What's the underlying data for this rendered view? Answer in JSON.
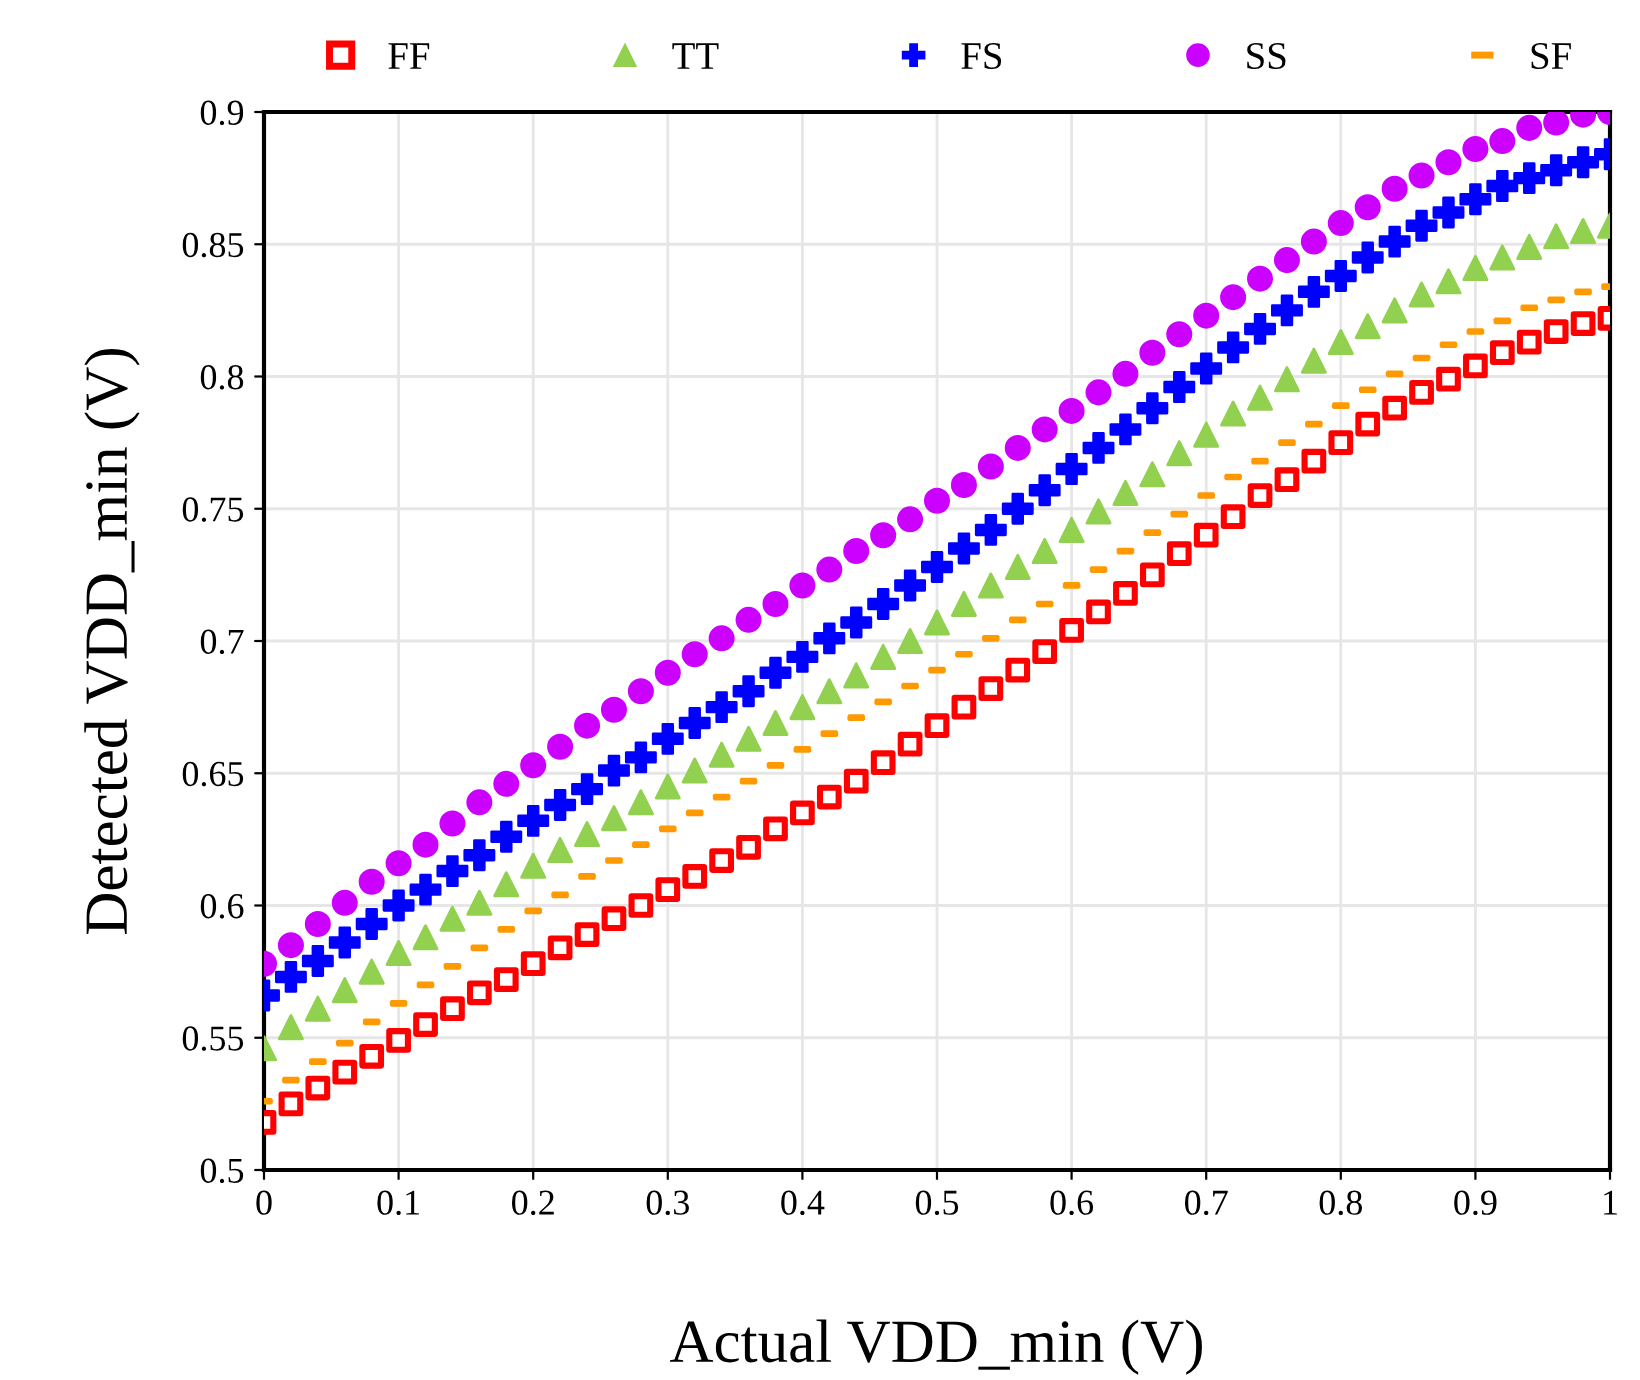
{
  "chart_data": {
    "type": "scatter",
    "xlabel": "Actual VDD_min (V)",
    "ylabel": "Detected VDD_min (V)",
    "x": [
      0,
      0.02,
      0.04,
      0.06,
      0.08,
      0.1,
      0.12,
      0.14,
      0.16,
      0.18,
      0.2,
      0.22,
      0.24,
      0.26,
      0.28,
      0.3,
      0.32,
      0.34,
      0.36,
      0.38,
      0.4,
      0.42,
      0.44,
      0.46,
      0.48,
      0.5,
      0.52,
      0.54,
      0.56,
      0.58,
      0.6,
      0.62,
      0.64,
      0.66,
      0.68,
      0.7,
      0.72,
      0.74,
      0.76,
      0.78,
      0.8,
      0.82,
      0.84,
      0.86,
      0.88,
      0.9,
      0.92,
      0.94,
      0.96,
      0.98,
      1
    ],
    "series": [
      {
        "name": "FF",
        "color": "#ff0000",
        "marker": "square",
        "values": [
          0.518,
          0.525,
          0.531,
          0.537,
          0.543,
          0.549,
          0.555,
          0.561,
          0.567,
          0.572,
          0.578,
          0.584,
          0.589,
          0.595,
          0.6,
          0.606,
          0.611,
          0.617,
          0.622,
          0.629,
          0.635,
          0.641,
          0.647,
          0.654,
          0.661,
          0.668,
          0.675,
          0.682,
          0.689,
          0.696,
          0.704,
          0.711,
          0.718,
          0.725,
          0.733,
          0.74,
          0.747,
          0.755,
          0.761,
          0.768,
          0.775,
          0.782,
          0.788,
          0.794,
          0.799,
          0.804,
          0.809,
          0.813,
          0.817,
          0.82,
          0.822
        ]
      },
      {
        "name": "TT",
        "color": "#92d050",
        "marker": "triangle",
        "values": [
          0.546,
          0.554,
          0.561,
          0.568,
          0.575,
          0.582,
          0.588,
          0.595,
          0.601,
          0.608,
          0.615,
          0.621,
          0.627,
          0.633,
          0.639,
          0.645,
          0.651,
          0.657,
          0.663,
          0.669,
          0.675,
          0.681,
          0.687,
          0.694,
          0.7,
          0.707,
          0.714,
          0.721,
          0.728,
          0.734,
          0.742,
          0.749,
          0.756,
          0.763,
          0.771,
          0.778,
          0.786,
          0.792,
          0.799,
          0.806,
          0.813,
          0.819,
          0.825,
          0.831,
          0.836,
          0.841,
          0.845,
          0.849,
          0.853,
          0.855,
          0.857
        ]
      },
      {
        "name": "FS",
        "color": "#0000ff",
        "marker": "cross",
        "values": [
          0.566,
          0.573,
          0.579,
          0.586,
          0.593,
          0.6,
          0.606,
          0.613,
          0.619,
          0.626,
          0.632,
          0.638,
          0.644,
          0.651,
          0.656,
          0.663,
          0.669,
          0.675,
          0.681,
          0.688,
          0.694,
          0.701,
          0.707,
          0.714,
          0.721,
          0.728,
          0.735,
          0.742,
          0.75,
          0.757,
          0.765,
          0.773,
          0.78,
          0.788,
          0.796,
          0.803,
          0.811,
          0.818,
          0.825,
          0.832,
          0.838,
          0.845,
          0.851,
          0.857,
          0.862,
          0.867,
          0.872,
          0.875,
          0.878,
          0.881,
          0.884
        ]
      },
      {
        "name": "SS",
        "color": "#cc00ff",
        "marker": "circle",
        "values": [
          0.578,
          0.585,
          0.593,
          0.601,
          0.609,
          0.616,
          0.623,
          0.631,
          0.639,
          0.646,
          0.653,
          0.66,
          0.668,
          0.674,
          0.681,
          0.688,
          0.695,
          0.701,
          0.708,
          0.714,
          0.721,
          0.727,
          0.734,
          0.74,
          0.746,
          0.753,
          0.759,
          0.766,
          0.773,
          0.78,
          0.787,
          0.794,
          0.801,
          0.809,
          0.816,
          0.823,
          0.83,
          0.837,
          0.844,
          0.851,
          0.858,
          0.864,
          0.871,
          0.876,
          0.881,
          0.886,
          0.889,
          0.894,
          0.896,
          0.899,
          0.9
        ]
      },
      {
        "name": "SF",
        "color": "#ff9900",
        "values": [
          0.526,
          0.534,
          0.541,
          0.548,
          0.556,
          0.563,
          0.57,
          0.577,
          0.584,
          0.591,
          0.598,
          0.604,
          0.611,
          0.617,
          0.623,
          0.629,
          0.635,
          0.641,
          0.647,
          0.653,
          0.659,
          0.665,
          0.671,
          0.677,
          0.683,
          0.689,
          0.695,
          0.701,
          0.708,
          0.714,
          0.721,
          0.727,
          0.734,
          0.741,
          0.748,
          0.755,
          0.762,
          0.768,
          0.775,
          0.782,
          0.789,
          0.795,
          0.801,
          0.807,
          0.812,
          0.817,
          0.821,
          0.826,
          0.829,
          0.832,
          0.834
        ]
      }
    ],
    "xlim": [
      0,
      1
    ],
    "xticks": [
      0,
      0.1,
      0.2,
      0.3,
      0.4,
      0.5,
      0.6,
      0.7,
      0.8,
      0.9,
      1
    ],
    "ylim": [
      0.5,
      0.9
    ],
    "yticks": [
      0.5,
      0.55,
      0.6,
      0.65,
      0.7,
      0.75,
      0.8,
      0.85,
      0.9
    ],
    "grid": true,
    "legend": "top"
  }
}
